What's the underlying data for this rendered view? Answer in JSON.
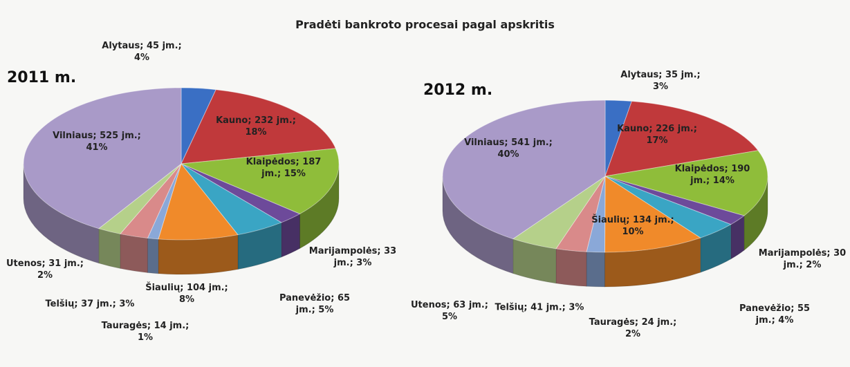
{
  "title": "Pradėti bankroto procesai pagal apskritis",
  "chart_data": [
    {
      "type": "pie",
      "title": "2011 m.",
      "categories": [
        "Alytaus",
        "Kauno",
        "Klaipėdos",
        "Marijampolės",
        "Panevėžio",
        "Šiaulių",
        "Tauragės",
        "Telšių",
        "Utenos",
        "Vilniaus"
      ],
      "values": [
        45,
        232,
        187,
        33,
        65,
        104,
        14,
        37,
        31,
        525
      ],
      "value_labels": [
        "Alytaus; 45 jm.; 4%",
        "Kauno; 232 jm.; 18%",
        "Klaipėdos; 187 jm.; 15%",
        "Marijampolės; 33 jm.; 3%",
        "Panevėžio; 65 jm.; 5%",
        "Šiaulių; 104 jm.; 8%",
        "Tauragės; 14 jm.; 1%",
        "Telšių; 37 jm.; 3%",
        "Utenos; 31 jm.; 2%",
        "Vilniaus; 525 jm.; 41%"
      ],
      "colors": [
        "#3a6fc4",
        "#c0393b",
        "#8fbd3a",
        "#6d4a9a",
        "#3aa5c4",
        "#f08a2a",
        "#8aa8d8",
        "#d98a8a",
        "#b5d08a",
        "#a99ac8"
      ]
    },
    {
      "type": "pie",
      "title": "2012 m.",
      "categories": [
        "Alytaus",
        "Kauno",
        "Klaipėdos",
        "Marijampolės",
        "Panevėžio",
        "Šiaulių",
        "Tauragės",
        "Telšių",
        "Utenos",
        "Vilniaus"
      ],
      "values": [
        35,
        226,
        190,
        30,
        55,
        134,
        24,
        41,
        63,
        541
      ],
      "value_labels": [
        "Alytaus; 35 jm.; 3%",
        "Kauno; 226 jm.; 17%",
        "Klaipėdos; 190 jm.; 14%",
        "Marijampolės; 30 jm.; 2%",
        "Panevėžio; 55 jm.; 4%",
        "Šiaulių; 134 jm.; 10%",
        "Tauragės; 24 jm.; 2%",
        "Telšių; 41 jm.; 3%",
        "Utenos; 63 jm.; 5%",
        "Vilniaus; 541 jm.; 40%"
      ],
      "colors": [
        "#3a6fc4",
        "#c0393b",
        "#8fbd3a",
        "#6d4a9a",
        "#3aa5c4",
        "#f08a2a",
        "#8aa8d8",
        "#d98a8a",
        "#b5d08a",
        "#a99ac8"
      ]
    }
  ]
}
